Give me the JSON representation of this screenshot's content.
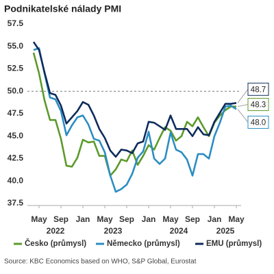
{
  "chart_data": {
    "type": "line",
    "title": "Podnikatelské nálady PMI",
    "source": "Source: KBC Economics based on WHO, S&P Global, Eurostat",
    "x": [
      "2022-04",
      "2022-05",
      "2022-06",
      "2022-07",
      "2022-08",
      "2022-09",
      "2022-10",
      "2022-11",
      "2022-12",
      "2023-01",
      "2023-02",
      "2023-03",
      "2023-04",
      "2023-05",
      "2023-06",
      "2023-07",
      "2023-08",
      "2023-09",
      "2023-10",
      "2023-11",
      "2023-12",
      "2024-01",
      "2024-02",
      "2024-03",
      "2024-04",
      "2024-05",
      "2024-06",
      "2024-07",
      "2024-08",
      "2024-09",
      "2024-10",
      "2024-11",
      "2024-12",
      "2025-01",
      "2025-02",
      "2025-03",
      "2025-04",
      "2025-05"
    ],
    "xticks": [
      {
        "value": "2022-05",
        "label": "May"
      },
      {
        "value": "2022-09",
        "label": "Sep"
      },
      {
        "value": "2023-01",
        "label": "Jan"
      },
      {
        "value": "2023-05",
        "label": "May"
      },
      {
        "value": "2023-09",
        "label": "Sep"
      },
      {
        "value": "2024-01",
        "label": "Jan"
      },
      {
        "value": "2024-05",
        "label": "May"
      },
      {
        "value": "2024-09",
        "label": "Sep"
      },
      {
        "value": "2025-01",
        "label": "Jan"
      },
      {
        "value": "2025-05",
        "label": "May"
      }
    ],
    "year_labels": [
      "2022",
      "2023",
      "2024",
      "2025"
    ],
    "ylim": [
      37.5,
      57.5
    ],
    "yticks": [
      37.5,
      {
        "value": 40,
        "label": "40.0"
      },
      42.5,
      {
        "value": 45,
        "label": "45.0"
      },
      47.5,
      {
        "value": 50,
        "label": "50.0"
      },
      52.5,
      {
        "value": 55,
        "label": "55.0"
      },
      57.5
    ],
    "reference_line": 50,
    "series": [
      {
        "name": "Česko (průmysl)",
        "color": "#5b9a2b",
        "end_label": "48.3",
        "values": [
          54.3,
          52.0,
          49.0,
          46.8,
          46.8,
          44.7,
          41.7,
          41.6,
          42.6,
          44.6,
          44.3,
          44.4,
          42.8,
          42.8,
          40.6,
          41.3,
          42.4,
          42.2,
          43.4,
          41.8,
          42.8,
          44.0,
          43.5,
          44.8,
          46.0,
          45.6,
          44.5,
          45.0,
          46.6,
          46.1,
          47.1,
          46.0,
          45.0,
          46.5,
          47.3,
          47.9,
          48.3,
          48.3
        ]
      },
      {
        "name": "Německo (průmysl)",
        "color": "#2b8dc2",
        "end_label": "48.0",
        "values": [
          54.6,
          54.8,
          52.0,
          49.3,
          49.1,
          47.8,
          45.1,
          46.2,
          47.1,
          47.3,
          46.3,
          44.7,
          44.5,
          43.2,
          40.6,
          38.8,
          39.1,
          39.6,
          40.8,
          42.6,
          43.3,
          45.5,
          42.5,
          41.9,
          42.5,
          45.4,
          43.5,
          43.2,
          42.4,
          40.6,
          43.0,
          43.0,
          42.5,
          45.0,
          46.5,
          48.3,
          48.4,
          48.0
        ]
      },
      {
        "name": "EMU (průmysl)",
        "color": "#0e2b5c",
        "end_label": "48.7",
        "values": [
          55.5,
          54.6,
          52.1,
          49.8,
          49.6,
          48.4,
          46.4,
          47.1,
          47.8,
          48.8,
          48.5,
          47.3,
          45.8,
          44.8,
          43.4,
          42.7,
          43.5,
          43.4,
          43.1,
          44.2,
          44.4,
          46.6,
          46.5,
          46.1,
          45.7,
          47.3,
          45.8,
          45.8,
          45.8,
          45.0,
          46.0,
          45.2,
          45.1,
          46.6,
          47.6,
          48.6,
          48.6,
          48.7
        ]
      }
    ]
  }
}
